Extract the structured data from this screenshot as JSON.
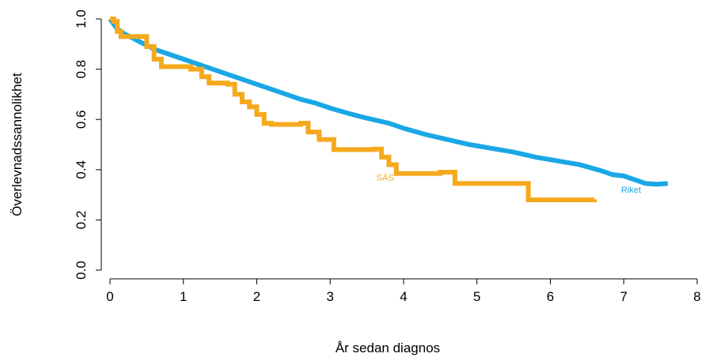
{
  "chart_data": {
    "type": "line",
    "xlabel": "År sedan diagnos",
    "ylabel": "Överlevnadssannolikhet",
    "xlim": [
      0,
      8
    ],
    "ylim": [
      0,
      1
    ],
    "x_ticks": [
      "0",
      "1",
      "2",
      "3",
      "4",
      "5",
      "6",
      "7",
      "8"
    ],
    "y_ticks": [
      "0.0",
      "0.2",
      "0.4",
      "0.6",
      "0.8",
      "1.0"
    ],
    "grid": false,
    "series": [
      {
        "name": "Riket",
        "color": "#1aa7e6",
        "step": false,
        "x": [
          0,
          0.1,
          0.2,
          0.4,
          0.6,
          0.8,
          1.0,
          1.2,
          1.5,
          1.8,
          2.0,
          2.3,
          2.6,
          2.8,
          3.0,
          3.3,
          3.5,
          3.8,
          4.0,
          4.3,
          4.6,
          4.9,
          5.2,
          5.5,
          5.8,
          6.1,
          6.4,
          6.7,
          6.85,
          7.0,
          7.15,
          7.3,
          7.45,
          7.6
        ],
        "y": [
          1.0,
          0.96,
          0.94,
          0.91,
          0.88,
          0.86,
          0.84,
          0.82,
          0.79,
          0.76,
          0.74,
          0.71,
          0.68,
          0.665,
          0.645,
          0.62,
          0.605,
          0.585,
          0.565,
          0.54,
          0.52,
          0.5,
          0.485,
          0.47,
          0.45,
          0.435,
          0.42,
          0.395,
          0.38,
          0.375,
          0.36,
          0.345,
          0.342,
          0.345
        ]
      },
      {
        "name": "SÄS",
        "color": "#f5a91d",
        "step": true,
        "x": [
          0,
          0.05,
          0.1,
          0.15,
          0.5,
          0.6,
          0.7,
          1.0,
          1.1,
          1.25,
          1.35,
          1.6,
          1.7,
          1.8,
          1.9,
          2.0,
          2.1,
          2.2,
          2.4,
          2.6,
          2.7,
          2.85,
          3.05,
          3.3,
          3.6,
          3.7,
          3.8,
          3.9,
          4.3,
          4.5,
          4.7,
          5.0,
          5.3,
          5.7,
          6.0,
          6.3,
          6.6
        ],
        "y": [
          1.0,
          0.99,
          0.95,
          0.93,
          0.89,
          0.84,
          0.81,
          0.81,
          0.8,
          0.77,
          0.745,
          0.74,
          0.7,
          0.67,
          0.65,
          0.62,
          0.585,
          0.58,
          0.58,
          0.585,
          0.55,
          0.52,
          0.48,
          0.48,
          0.482,
          0.45,
          0.42,
          0.385,
          0.385,
          0.39,
          0.345,
          0.345,
          0.345,
          0.28,
          0.28,
          0.28,
          0.282
        ]
      }
    ],
    "annotations": [
      {
        "text": "SÄS",
        "x": 3.75,
        "y": 0.37,
        "color": "#f5a91d"
      },
      {
        "text": "Riket",
        "x": 7.1,
        "y": 0.32,
        "color": "#1aa7e6"
      }
    ]
  }
}
